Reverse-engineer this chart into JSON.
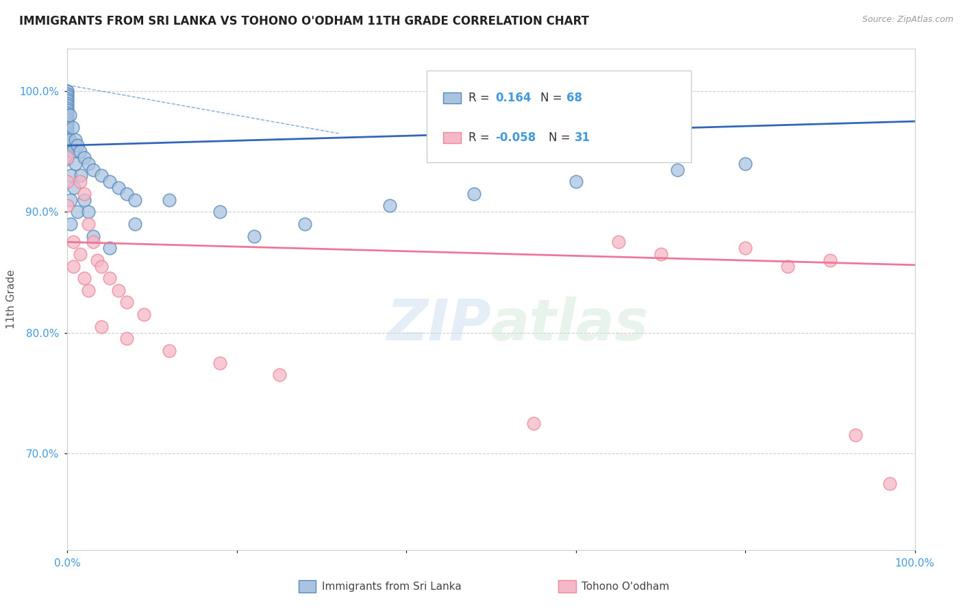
{
  "title": "IMMIGRANTS FROM SRI LANKA VS TOHONO O'ODHAM 11TH GRADE CORRELATION CHART",
  "source_text": "Source: ZipAtlas.com",
  "ylabel": "11th Grade",
  "xmin": 0.0,
  "xmax": 1.0,
  "ymin": 0.62,
  "ymax": 1.035,
  "ytick_labels": [
    "70.0%",
    "80.0%",
    "90.0%",
    "100.0%"
  ],
  "ytick_values": [
    0.7,
    0.8,
    0.9,
    1.0
  ],
  "grid_color": "#cccccc",
  "blue_color": "#aac4e0",
  "blue_edge_color": "#5588bb",
  "pink_color": "#f4b8c8",
  "pink_edge_color": "#ee8899",
  "blue_line_color": "#3366bb",
  "pink_line_color": "#ee7799",
  "blue_scatter_x": [
    0.0,
    0.0,
    0.0,
    0.0,
    0.0,
    0.0,
    0.0,
    0.0,
    0.0,
    0.0,
    0.0,
    0.0,
    0.0,
    0.0,
    0.0,
    0.0,
    0.0,
    0.0,
    0.0,
    0.0,
    0.0,
    0.0,
    0.0,
    0.0,
    0.0,
    0.0,
    0.0,
    0.0,
    0.0,
    0.0,
    0.003,
    0.003,
    0.006,
    0.006,
    0.009,
    0.009,
    0.012,
    0.015,
    0.02,
    0.025,
    0.03,
    0.04,
    0.05,
    0.06,
    0.07,
    0.08,
    0.05,
    0.08,
    0.12,
    0.18,
    0.22,
    0.28,
    0.38,
    0.48,
    0.6,
    0.72,
    0.8,
    0.004,
    0.004,
    0.004,
    0.008,
    0.012,
    0.016,
    0.02,
    0.025,
    0.03
  ],
  "blue_scatter_y": [
    1.0,
    1.0,
    0.998,
    0.996,
    0.994,
    0.992,
    0.99,
    0.988,
    0.986,
    0.984,
    0.982,
    0.98,
    0.978,
    0.976,
    0.974,
    0.972,
    0.97,
    0.968,
    0.966,
    0.964,
    0.962,
    0.96,
    0.958,
    0.956,
    0.954,
    0.952,
    0.95,
    0.948,
    0.946,
    0.944,
    0.98,
    0.96,
    0.97,
    0.95,
    0.96,
    0.94,
    0.955,
    0.95,
    0.945,
    0.94,
    0.935,
    0.93,
    0.925,
    0.92,
    0.915,
    0.91,
    0.87,
    0.89,
    0.91,
    0.9,
    0.88,
    0.89,
    0.905,
    0.915,
    0.925,
    0.935,
    0.94,
    0.93,
    0.91,
    0.89,
    0.92,
    0.9,
    0.93,
    0.91,
    0.9,
    0.88
  ],
  "pink_scatter_x": [
    0.0,
    0.0,
    0.0,
    0.015,
    0.02,
    0.025,
    0.03,
    0.035,
    0.04,
    0.05,
    0.06,
    0.07,
    0.09,
    0.04,
    0.07,
    0.12,
    0.18,
    0.25,
    0.55,
    0.65,
    0.7,
    0.8,
    0.85,
    0.9,
    0.93,
    0.97,
    0.007,
    0.007,
    0.015,
    0.02,
    0.025
  ],
  "pink_scatter_y": [
    0.945,
    0.925,
    0.905,
    0.925,
    0.915,
    0.89,
    0.875,
    0.86,
    0.855,
    0.845,
    0.835,
    0.825,
    0.815,
    0.805,
    0.795,
    0.785,
    0.775,
    0.765,
    0.725,
    0.875,
    0.865,
    0.87,
    0.855,
    0.86,
    0.715,
    0.675,
    0.875,
    0.855,
    0.865,
    0.845,
    0.835
  ],
  "blue_trend": [
    0.0,
    1.0,
    0.955,
    0.975
  ],
  "pink_trend": [
    0.0,
    1.0,
    0.875,
    0.856
  ],
  "blue_dash_trend": [
    0.0,
    0.32,
    1.005,
    0.965
  ]
}
